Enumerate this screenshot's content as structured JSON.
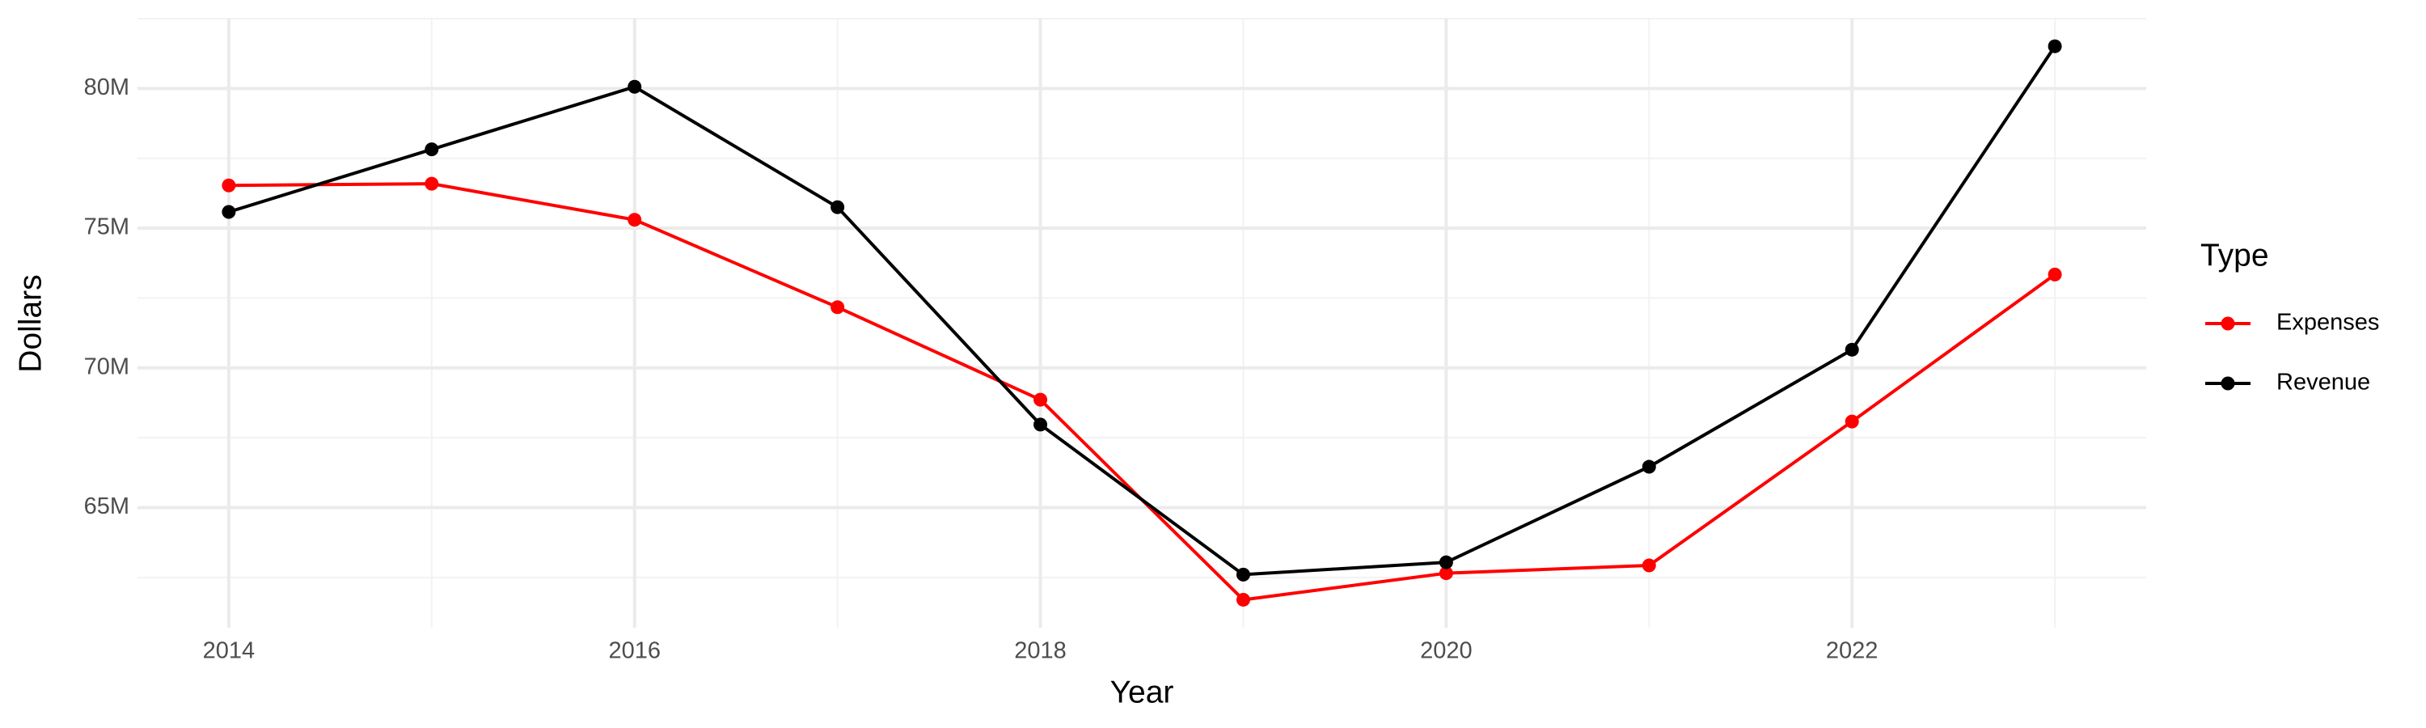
{
  "chart_data": {
    "type": "line",
    "x_label": "Year",
    "y_label": "Dollars",
    "legend_title": "Type",
    "x": [
      2014,
      2015,
      2016,
      2017,
      2018,
      2019,
      2020,
      2021,
      2022,
      2023
    ],
    "series": [
      {
        "name": "Expenses",
        "color": "#ff0000",
        "values": [
          76530000,
          76590000,
          75300000,
          72170000,
          68860000,
          61700000,
          62650000,
          62930000,
          68080000,
          73340000
        ]
      },
      {
        "name": "Revenue",
        "color": "#000000",
        "values": [
          75580000,
          77820000,
          80060000,
          75750000,
          67970000,
          62600000,
          63040000,
          66460000,
          70650000,
          81510000
        ]
      }
    ],
    "xlim": [
      2013.55,
      2023.45
    ],
    "xticks": [
      2014,
      2016,
      2018,
      2020,
      2022
    ],
    "ylim": [
      60700000,
      82500000
    ],
    "yticks": [
      {
        "value": 65000000,
        "label": "65M"
      },
      {
        "value": 70000000,
        "label": "70M"
      },
      {
        "value": 75000000,
        "label": "75M"
      },
      {
        "value": 80000000,
        "label": "80M"
      }
    ],
    "grid": true,
    "legend": "right"
  }
}
